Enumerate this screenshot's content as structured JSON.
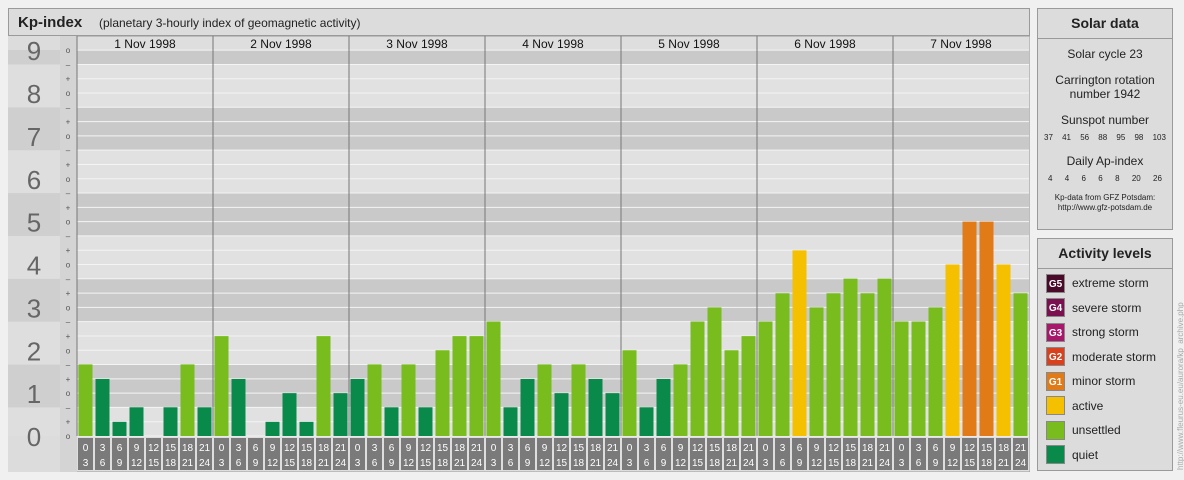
{
  "header": {
    "title": "Kp-index",
    "subtitle": "(planetary 3-hourly index of geomagnetic activity)"
  },
  "solar": {
    "title": "Solar data",
    "cycle": "Solar cycle 23",
    "carrington_line1": "Carrington rotation",
    "carrington_line2": "number 1942",
    "sunspot_label": "Sunspot number",
    "sunspot_values": [
      "37",
      "41",
      "56",
      "88",
      "95",
      "98",
      "103"
    ],
    "ap_label": "Daily Ap-index",
    "ap_values": [
      "4",
      "4",
      "6",
      "6",
      "8",
      "20",
      "26"
    ],
    "source_line1": "Kp-data from GFZ Potsdam:",
    "source_line2": "http://www.gfz-potsdam.de"
  },
  "activity": {
    "title": "Activity levels",
    "levels": [
      {
        "code": "G5",
        "label": "extreme storm",
        "color": "#4a0a2a"
      },
      {
        "code": "G4",
        "label": "severe storm",
        "color": "#7a1050"
      },
      {
        "code": "G3",
        "label": "strong storm",
        "color": "#a8186a"
      },
      {
        "code": "G2",
        "label": "moderate storm",
        "color": "#d8401e"
      },
      {
        "code": "G1",
        "label": "minor storm",
        "color": "#e07b18"
      },
      {
        "code": "",
        "label": "active",
        "color": "#f5c000"
      },
      {
        "code": "",
        "label": "unsettled",
        "color": "#78bc1e"
      },
      {
        "code": "",
        "label": "quiet",
        "color": "#0a8a4a"
      }
    ]
  },
  "watermark": "http://www.fleurus-eu.eu/aurora/kp_archive.php",
  "chart_data": {
    "type": "bar",
    "days": [
      "1 Nov 1998",
      "2 Nov 1998",
      "3 Nov 1998",
      "4 Nov 1998",
      "5 Nov 1998",
      "6 Nov 1998",
      "7 Nov 1998"
    ],
    "interval_start": [
      "0",
      "3",
      "6",
      "9",
      "12",
      "15",
      "18",
      "21"
    ],
    "interval_end": [
      "3",
      "6",
      "9",
      "12",
      "15",
      "18",
      "21",
      "24"
    ],
    "y_major_labels": [
      "0",
      "1",
      "2",
      "3",
      "4",
      "5",
      "6",
      "7",
      "8",
      "9"
    ],
    "y_minor_labels": [
      "o",
      "+",
      "–"
    ],
    "ylim": [
      0,
      9.33
    ],
    "values": [
      [
        1.67,
        1.33,
        0.33,
        0.67,
        0,
        0.67,
        1.67,
        0.67
      ],
      [
        2.33,
        1.33,
        0,
        0.33,
        1,
        0.33,
        2.33,
        1
      ],
      [
        1.33,
        1.67,
        0.67,
        1.67,
        0.67,
        2,
        2.33,
        2.33
      ],
      [
        2.67,
        0.67,
        1.33,
        1.67,
        1,
        1.67,
        1.33,
        1
      ],
      [
        2,
        0.67,
        1.33,
        1.67,
        2.67,
        3,
        2,
        2.33
      ],
      [
        2.67,
        3.33,
        4.33,
        3,
        3.33,
        3.67,
        3.33,
        3.67
      ],
      [
        2.67,
        2.67,
        3,
        4,
        5,
        5,
        4,
        3.33
      ]
    ],
    "colors": {
      "quiet": "#0a8a4a",
      "unsettled": "#78bc1e",
      "active": "#f5c000",
      "minor_storm": "#e07b18"
    }
  }
}
